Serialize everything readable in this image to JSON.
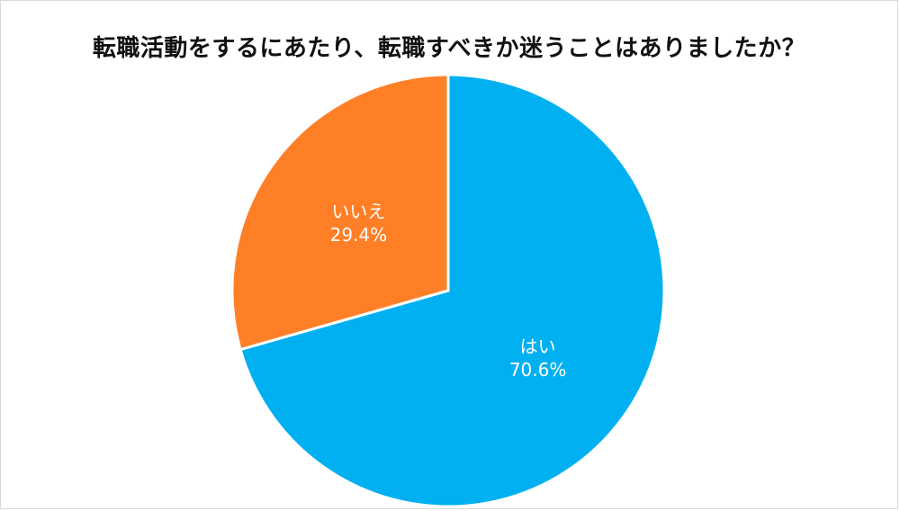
{
  "chart_data": {
    "type": "pie",
    "title": "転職活動をするにあたり、転職すべきか迷うことはありましたか？",
    "slices": [
      {
        "label": "はい",
        "value": 70.6,
        "value_label": "70.6%",
        "color": "#00b0f0"
      },
      {
        "label": "いいえ",
        "value": 29.4,
        "value_label": "29.4%",
        "color": "#ff7f27"
      }
    ],
    "start_angle": "12 o'clock",
    "direction": "clockwise",
    "legend": "none",
    "slice_border_color": "#ffffff"
  }
}
